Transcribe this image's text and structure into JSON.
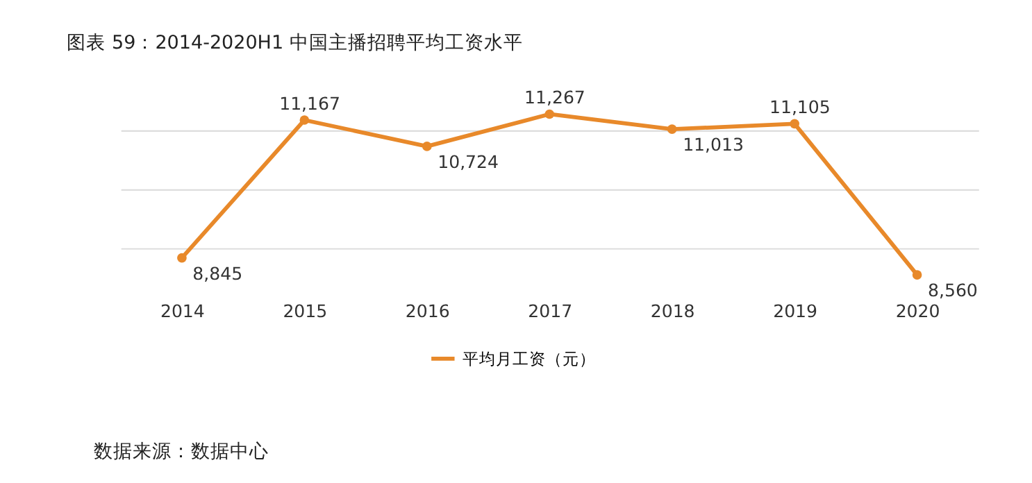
{
  "chart_data": {
    "type": "line",
    "title": "图表 59：2014-2020H1 中国主播招聘平均工资水平",
    "categories": [
      "2014",
      "2015",
      "2016",
      "2017",
      "2018",
      "2019",
      "2020"
    ],
    "series": [
      {
        "name": "平均月工资（元）",
        "color": "#e8892a",
        "values": [
          8845,
          11167,
          10724,
          11267,
          11013,
          11105,
          8560
        ],
        "value_labels": [
          "8,845",
          "11,167",
          "10,724",
          "11,267",
          "11,013",
          "11,105",
          "8,560"
        ]
      }
    ],
    "tick_labels": "x",
    "grid": "y",
    "legend": "bottom",
    "marker": "circle",
    "line_style": "solid",
    "annotations": [
      "数据来源：数据中心"
    ]
  }
}
